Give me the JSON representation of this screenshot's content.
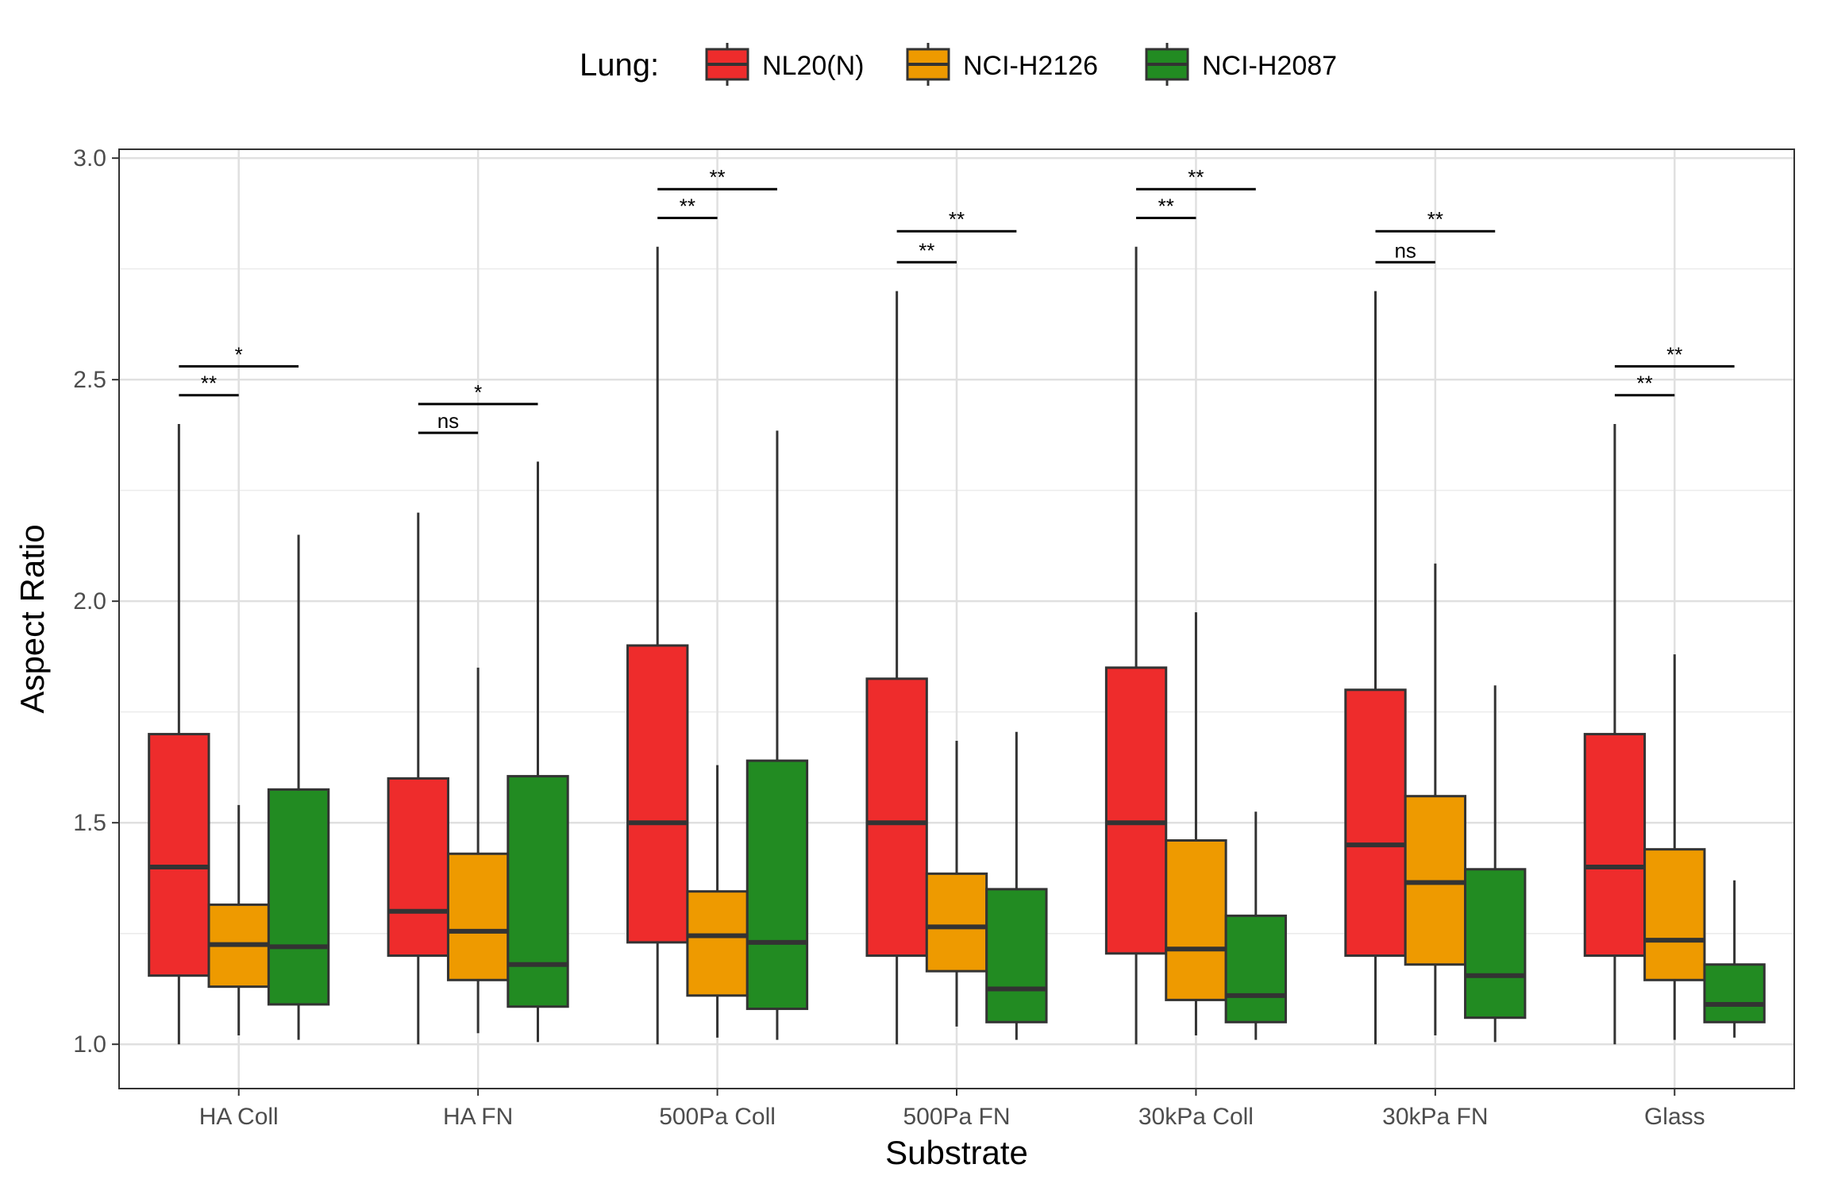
{
  "chart_data": {
    "type": "boxplot",
    "xlabel": "Substrate",
    "ylabel": "Aspect Ratio",
    "ylim": [
      0.9,
      3.02
    ],
    "yticks": [
      1.0,
      1.5,
      2.0,
      2.5,
      3.0
    ],
    "ytick_labels": [
      "1.0",
      "1.5",
      "2.0",
      "2.5",
      "3.0"
    ],
    "grid": true,
    "legend_position": "top",
    "legend_title": "Lung:",
    "categories": [
      "HA Coll",
      "HA FN",
      "500Pa Coll",
      "500Pa FN",
      "30kPa Coll",
      "30kPa FN",
      "Glass"
    ],
    "series": [
      {
        "name": "NL20(N)",
        "color": "#EE2C2C",
        "boxes": [
          {
            "min": 1.0,
            "q1": 1.155,
            "median": 1.4,
            "q3": 1.7,
            "max": 2.4
          },
          {
            "min": 1.0,
            "q1": 1.2,
            "median": 1.3,
            "q3": 1.6,
            "max": 2.2
          },
          {
            "min": 1.0,
            "q1": 1.23,
            "median": 1.5,
            "q3": 1.9,
            "max": 2.8
          },
          {
            "min": 1.0,
            "q1": 1.2,
            "median": 1.5,
            "q3": 1.825,
            "max": 2.7
          },
          {
            "min": 1.0,
            "q1": 1.205,
            "median": 1.5,
            "q3": 1.85,
            "max": 2.8
          },
          {
            "min": 1.0,
            "q1": 1.2,
            "median": 1.45,
            "q3": 1.8,
            "max": 2.7
          },
          {
            "min": 1.0,
            "q1": 1.2,
            "median": 1.4,
            "q3": 1.7,
            "max": 2.4
          }
        ]
      },
      {
        "name": "NCI-H2126",
        "color": "#EE9A00",
        "boxes": [
          {
            "min": 1.02,
            "q1": 1.13,
            "median": 1.225,
            "q3": 1.315,
            "max": 1.54
          },
          {
            "min": 1.025,
            "q1": 1.145,
            "median": 1.255,
            "q3": 1.43,
            "max": 1.85
          },
          {
            "min": 1.015,
            "q1": 1.11,
            "median": 1.245,
            "q3": 1.345,
            "max": 1.63
          },
          {
            "min": 1.04,
            "q1": 1.165,
            "median": 1.265,
            "q3": 1.385,
            "max": 1.685
          },
          {
            "min": 1.02,
            "q1": 1.1,
            "median": 1.215,
            "q3": 1.46,
            "max": 1.975
          },
          {
            "min": 1.02,
            "q1": 1.18,
            "median": 1.365,
            "q3": 1.56,
            "max": 2.085
          },
          {
            "min": 1.01,
            "q1": 1.145,
            "median": 1.235,
            "q3": 1.44,
            "max": 1.88
          }
        ]
      },
      {
        "name": "NCI-H2087",
        "color": "#228B22",
        "boxes": [
          {
            "min": 1.01,
            "q1": 1.09,
            "median": 1.22,
            "q3": 1.575,
            "max": 2.15
          },
          {
            "min": 1.005,
            "q1": 1.085,
            "median": 1.18,
            "q3": 1.605,
            "max": 2.315
          },
          {
            "min": 1.01,
            "q1": 1.08,
            "median": 1.23,
            "q3": 1.64,
            "max": 2.385
          },
          {
            "min": 1.01,
            "q1": 1.05,
            "median": 1.125,
            "q3": 1.35,
            "max": 1.705
          },
          {
            "min": 1.01,
            "q1": 1.05,
            "median": 1.11,
            "q3": 1.29,
            "max": 1.525
          },
          {
            "min": 1.005,
            "q1": 1.06,
            "median": 1.155,
            "q3": 1.395,
            "max": 1.81
          },
          {
            "min": 1.015,
            "q1": 1.05,
            "median": 1.09,
            "q3": 1.18,
            "max": 1.37
          }
        ]
      }
    ],
    "annotations": [
      {
        "category": "HA Coll",
        "comparison": "NL20(N) vs NCI-H2126",
        "label": "**",
        "y": 2.465
      },
      {
        "category": "HA Coll",
        "comparison": "NL20(N) vs NCI-H2087",
        "label": "*",
        "y": 2.53
      },
      {
        "category": "HA FN",
        "comparison": "NL20(N) vs NCI-H2126",
        "label": "ns",
        "y": 2.38
      },
      {
        "category": "HA FN",
        "comparison": "NL20(N) vs NCI-H2087",
        "label": "*",
        "y": 2.445
      },
      {
        "category": "500Pa Coll",
        "comparison": "NL20(N) vs NCI-H2126",
        "label": "**",
        "y": 2.865
      },
      {
        "category": "500Pa Coll",
        "comparison": "NL20(N) vs NCI-H2087",
        "label": "**",
        "y": 2.93
      },
      {
        "category": "500Pa FN",
        "comparison": "NL20(N) vs NCI-H2126",
        "label": "**",
        "y": 2.765
      },
      {
        "category": "500Pa FN",
        "comparison": "NL20(N) vs NCI-H2087",
        "label": "**",
        "y": 2.835
      },
      {
        "category": "30kPa Coll",
        "comparison": "NL20(N) vs NCI-H2126",
        "label": "**",
        "y": 2.865
      },
      {
        "category": "30kPa Coll",
        "comparison": "NL20(N) vs NCI-H2087",
        "label": "**",
        "y": 2.93
      },
      {
        "category": "30kPa FN",
        "comparison": "NL20(N) vs NCI-H2126",
        "label": "ns",
        "y": 2.765
      },
      {
        "category": "30kPa FN",
        "comparison": "NL20(N) vs NCI-H2087",
        "label": "**",
        "y": 2.835
      },
      {
        "category": "Glass",
        "comparison": "NL20(N) vs NCI-H2126",
        "label": "**",
        "y": 2.465
      },
      {
        "category": "Glass",
        "comparison": "NL20(N) vs NCI-H2087",
        "label": "**",
        "y": 2.53
      }
    ]
  }
}
